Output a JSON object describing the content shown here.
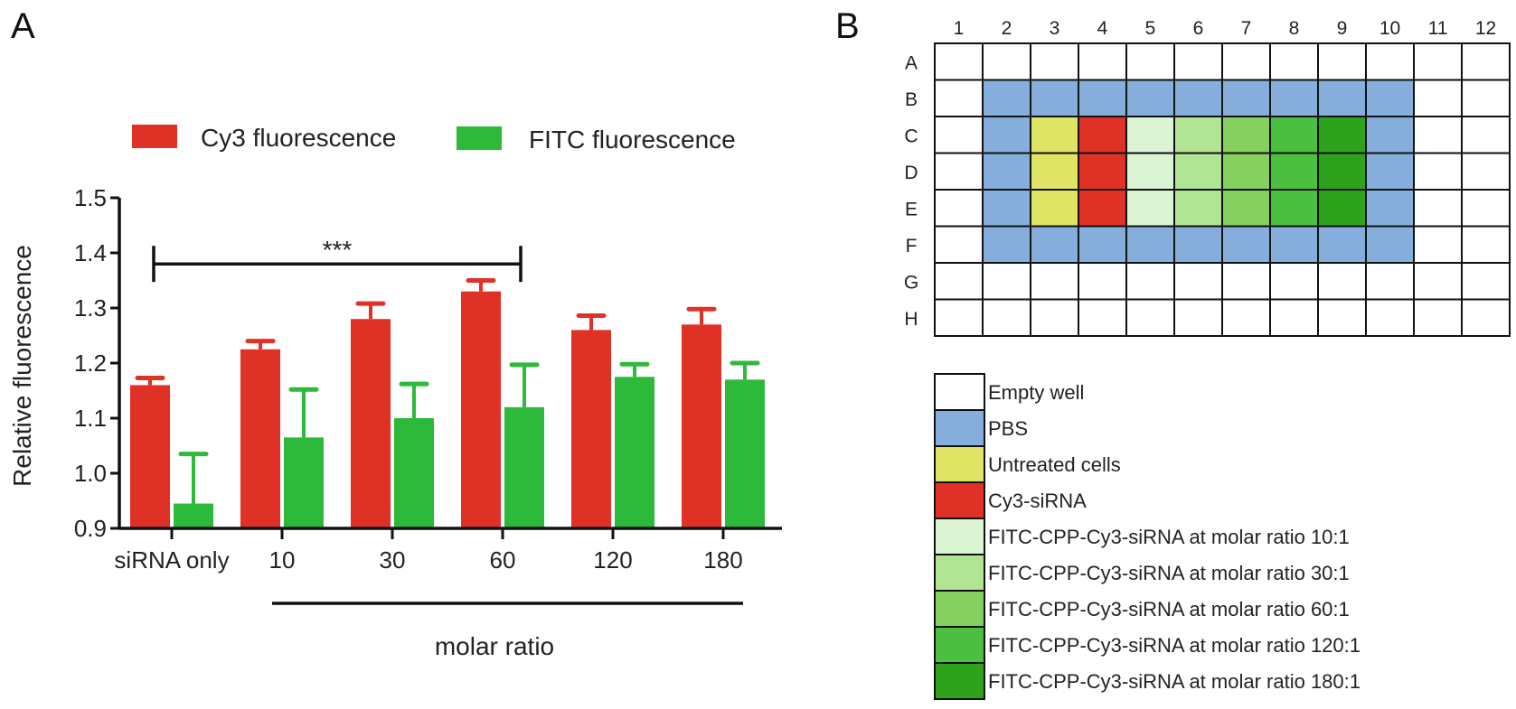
{
  "panels": {
    "a": "A",
    "b": "B"
  },
  "chart_data": [
    {
      "type": "bar",
      "categories": [
        "siRNA only",
        "10",
        "30",
        "60",
        "120",
        "180"
      ],
      "series": [
        {
          "name": "Cy3 fluorescence",
          "color": "#e03127",
          "values": [
            1.16,
            1.225,
            1.28,
            1.33,
            1.26,
            1.27
          ],
          "errors": [
            0.013,
            0.015,
            0.028,
            0.02,
            0.026,
            0.028
          ]
        },
        {
          "name": "FITC fluorescence",
          "color": "#2db939",
          "values": [
            0.945,
            1.065,
            1.1,
            1.12,
            1.175,
            1.17
          ],
          "errors": [
            0.09,
            0.087,
            0.062,
            0.077,
            0.023,
            0.03
          ]
        }
      ],
      "xlabel": "molar ratio",
      "ylabel": "Relative fluorescence",
      "ylim": [
        0.9,
        1.5
      ],
      "yticks": [
        "0.9",
        "1.0",
        "1.1",
        "1.2",
        "1.3",
        "1.4",
        "1.5"
      ],
      "yticks_values": [
        0.9,
        1.0,
        1.1,
        1.2,
        1.3,
        1.4,
        1.5
      ],
      "significance": {
        "label": "***",
        "from": "siRNA only",
        "to": "60",
        "y": 1.38
      },
      "legend_position": "top"
    },
    {
      "type": "heatmap",
      "columns": [
        "1",
        "2",
        "3",
        "4",
        "5",
        "6",
        "7",
        "8",
        "9",
        "10",
        "11",
        "12"
      ],
      "rows": [
        "A",
        "B",
        "C",
        "D",
        "E",
        "F",
        "G",
        "H"
      ],
      "wells": [
        [
          "empty",
          "empty",
          "empty",
          "empty",
          "empty",
          "empty",
          "empty",
          "empty",
          "empty",
          "empty",
          "empty",
          "empty"
        ],
        [
          "empty",
          "pbs",
          "pbs",
          "pbs",
          "pbs",
          "pbs",
          "pbs",
          "pbs",
          "pbs",
          "pbs",
          "empty",
          "empty"
        ],
        [
          "empty",
          "pbs",
          "untreated",
          "cy3",
          "r10",
          "r30",
          "r60",
          "r120",
          "r180",
          "pbs",
          "empty",
          "empty"
        ],
        [
          "empty",
          "pbs",
          "untreated",
          "cy3",
          "r10",
          "r30",
          "r60",
          "r120",
          "r180",
          "pbs",
          "empty",
          "empty"
        ],
        [
          "empty",
          "pbs",
          "untreated",
          "cy3",
          "r10",
          "r30",
          "r60",
          "r120",
          "r180",
          "pbs",
          "empty",
          "empty"
        ],
        [
          "empty",
          "pbs",
          "pbs",
          "pbs",
          "pbs",
          "pbs",
          "pbs",
          "pbs",
          "pbs",
          "pbs",
          "empty",
          "empty"
        ],
        [
          "empty",
          "empty",
          "empty",
          "empty",
          "empty",
          "empty",
          "empty",
          "empty",
          "empty",
          "empty",
          "empty",
          "empty"
        ],
        [
          "empty",
          "empty",
          "empty",
          "empty",
          "empty",
          "empty",
          "empty",
          "empty",
          "empty",
          "empty",
          "empty",
          "empty"
        ]
      ],
      "legend": [
        {
          "key": "empty",
          "label": "Empty well",
          "color": "#ffffff"
        },
        {
          "key": "pbs",
          "label": "PBS",
          "color": "#85aedd"
        },
        {
          "key": "untreated",
          "label": "Untreated cells",
          "color": "#dfe464"
        },
        {
          "key": "cy3",
          "label": "Cy3-siRNA",
          "color": "#e03127"
        },
        {
          "key": "r10",
          "label": "FITC-CPP-Cy3-siRNA at molar ratio 10:1",
          "color": "#dbf4d3"
        },
        {
          "key": "r30",
          "label": "FITC-CPP-Cy3-siRNA at molar ratio 30:1",
          "color": "#b1e593"
        },
        {
          "key": "r60",
          "label": "FITC-CPP-Cy3-siRNA at molar ratio 60:1",
          "color": "#85d05e"
        },
        {
          "key": "r120",
          "label": "FITC-CPP-Cy3-siRNA at molar ratio 120:1",
          "color": "#4cbe40"
        },
        {
          "key": "r180",
          "label": "FITC-CPP-Cy3-siRNA at molar ratio 180:1",
          "color": "#2fa21b"
        }
      ]
    }
  ]
}
